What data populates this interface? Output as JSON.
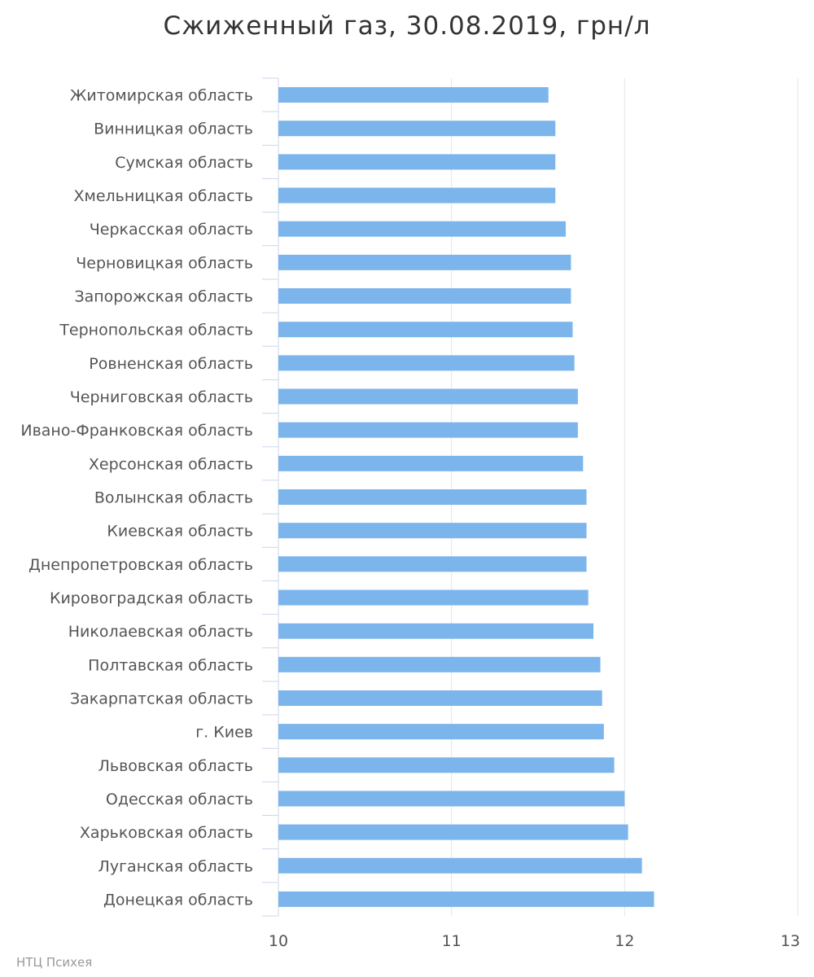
{
  "chart_data": {
    "type": "bar",
    "orientation": "horizontal",
    "title": "Сжиженный газ, 30.08.2019, грн/л",
    "categories": [
      "Житомирская область",
      "Винницкая область",
      "Сумская область",
      "Хмельницкая область",
      "Черкасская область",
      "Черновицкая область",
      "Запорожская область",
      "Тернопольская область",
      "Ровненская область",
      "Черниговская область",
      "Ивано-Франковская область",
      "Херсонская область",
      "Волынская область",
      "Киевская область",
      "Днепропетровская область",
      "Кировоградская область",
      "Николаевская область",
      "Полтавская область",
      "Закарпатская область",
      "г. Киев",
      "Львовская область",
      "Одесская область",
      "Харьковская область",
      "Луганская область",
      "Донецкая область"
    ],
    "values": [
      11.56,
      11.6,
      11.6,
      11.6,
      11.66,
      11.69,
      11.69,
      11.7,
      11.71,
      11.73,
      11.73,
      11.76,
      11.78,
      11.78,
      11.78,
      11.79,
      11.82,
      11.86,
      11.87,
      11.88,
      11.94,
      12.0,
      12.02,
      12.1,
      12.17
    ],
    "xlim": [
      10,
      13
    ],
    "x_ticks": [
      "10",
      "11",
      "12",
      "13"
    ],
    "grid": true,
    "bar_color": "#7cb5ec",
    "credit": "НТЦ Психея"
  }
}
